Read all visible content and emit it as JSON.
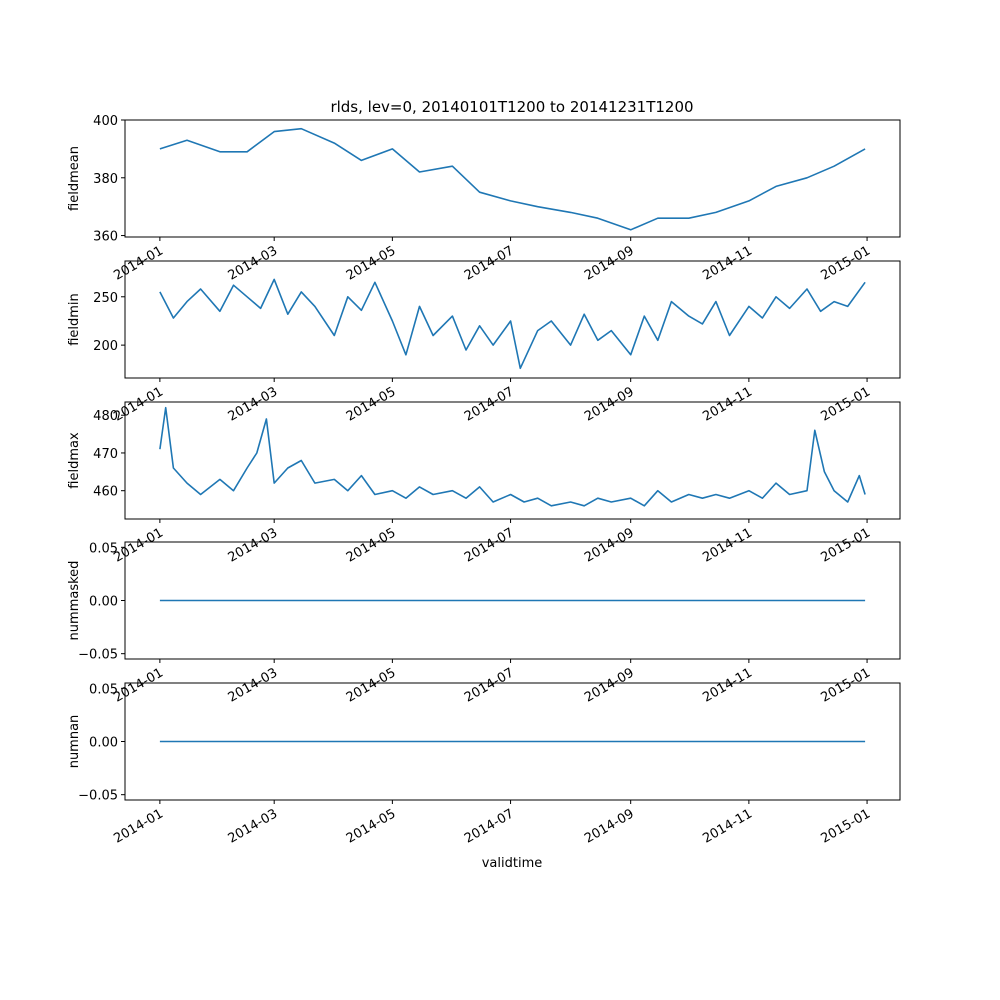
{
  "chart_data": {
    "title": "rlds, lev=0, 20140101T1200 to 20141231T1200",
    "xlabel": "validtime",
    "xtick_labels": [
      "2014-01",
      "2014-03",
      "2014-05",
      "2014-07",
      "2014-09",
      "2014-11",
      "2015-01"
    ],
    "xlim": [
      "2013-12-14",
      "2015-01-18"
    ],
    "colors": {
      "series": "#1f77b4"
    },
    "panels": [
      {
        "type": "line",
        "ylabel": "fieldmean",
        "ylim": [
          359.5,
          400
        ],
        "yticks": [
          360,
          380,
          400
        ],
        "ytick_labels": [
          "360",
          "380",
          "400"
        ],
        "x": [
          "2014-01-01",
          "2014-01-15",
          "2014-02-01",
          "2014-02-15",
          "2014-03-01",
          "2014-03-15",
          "2014-04-01",
          "2014-04-15",
          "2014-05-01",
          "2014-05-15",
          "2014-06-01",
          "2014-06-15",
          "2014-07-01",
          "2014-07-15",
          "2014-08-01",
          "2014-08-15",
          "2014-09-01",
          "2014-09-15",
          "2014-10-01",
          "2014-10-15",
          "2014-11-01",
          "2014-11-15",
          "2014-12-01",
          "2014-12-15",
          "2014-12-31"
        ],
        "y": [
          390,
          393,
          389,
          389,
          396,
          397,
          392,
          386,
          390,
          382,
          384,
          375,
          372,
          370,
          368,
          366,
          362,
          366,
          366,
          368,
          372,
          377,
          380,
          384,
          390
        ]
      },
      {
        "type": "line",
        "ylabel": "fieldmin",
        "ylim": [
          166,
          287
        ],
        "yticks": [
          200,
          250
        ],
        "ytick_labels": [
          "200",
          "250"
        ],
        "x": [
          "2014-01-01",
          "2014-01-08",
          "2014-01-15",
          "2014-01-22",
          "2014-02-01",
          "2014-02-08",
          "2014-02-15",
          "2014-02-22",
          "2014-03-01",
          "2014-03-08",
          "2014-03-15",
          "2014-03-22",
          "2014-04-01",
          "2014-04-08",
          "2014-04-15",
          "2014-04-22",
          "2014-05-01",
          "2014-05-08",
          "2014-05-15",
          "2014-05-22",
          "2014-06-01",
          "2014-06-08",
          "2014-06-15",
          "2014-06-22",
          "2014-07-01",
          "2014-07-06",
          "2014-07-15",
          "2014-07-22",
          "2014-08-01",
          "2014-08-08",
          "2014-08-15",
          "2014-08-22",
          "2014-09-01",
          "2014-09-08",
          "2014-09-15",
          "2014-09-22",
          "2014-10-01",
          "2014-10-08",
          "2014-10-15",
          "2014-10-22",
          "2014-11-01",
          "2014-11-08",
          "2014-11-15",
          "2014-11-22",
          "2014-12-01",
          "2014-12-08",
          "2014-12-15",
          "2014-12-22",
          "2014-12-31"
        ],
        "y": [
          255,
          228,
          245,
          258,
          235,
          262,
          250,
          238,
          268,
          232,
          255,
          240,
          210,
          250,
          236,
          265,
          225,
          190,
          240,
          210,
          230,
          195,
          220,
          200,
          225,
          176,
          215,
          225,
          200,
          232,
          205,
          215,
          190,
          230,
          205,
          245,
          230,
          222,
          245,
          210,
          240,
          228,
          250,
          238,
          258,
          235,
          245,
          240,
          265
        ]
      },
      {
        "type": "line",
        "ylabel": "fieldmax",
        "ylim": [
          452.5,
          483.5
        ],
        "yticks": [
          460,
          470,
          480
        ],
        "ytick_labels": [
          "460",
          "470",
          "480"
        ],
        "x": [
          "2014-01-01",
          "2014-01-04",
          "2014-01-08",
          "2014-01-15",
          "2014-01-22",
          "2014-02-01",
          "2014-02-08",
          "2014-02-15",
          "2014-02-20",
          "2014-02-25",
          "2014-03-01",
          "2014-03-08",
          "2014-03-15",
          "2014-03-22",
          "2014-04-01",
          "2014-04-08",
          "2014-04-15",
          "2014-04-22",
          "2014-05-01",
          "2014-05-08",
          "2014-05-15",
          "2014-05-22",
          "2014-06-01",
          "2014-06-08",
          "2014-06-15",
          "2014-06-22",
          "2014-07-01",
          "2014-07-08",
          "2014-07-15",
          "2014-07-22",
          "2014-08-01",
          "2014-08-08",
          "2014-08-15",
          "2014-08-22",
          "2014-09-01",
          "2014-09-08",
          "2014-09-15",
          "2014-09-22",
          "2014-10-01",
          "2014-10-08",
          "2014-10-15",
          "2014-10-22",
          "2014-11-01",
          "2014-11-08",
          "2014-11-15",
          "2014-11-22",
          "2014-12-01",
          "2014-12-05",
          "2014-12-10",
          "2014-12-15",
          "2014-12-22",
          "2014-12-28",
          "2014-12-31"
        ],
        "y": [
          471,
          482,
          466,
          462,
          459,
          463,
          460,
          466,
          470,
          479,
          462,
          466,
          468,
          462,
          463,
          460,
          464,
          459,
          460,
          458,
          461,
          459,
          460,
          458,
          461,
          457,
          459,
          457,
          458,
          456,
          457,
          456,
          458,
          457,
          458,
          456,
          460,
          457,
          459,
          458,
          459,
          458,
          460,
          458,
          462,
          459,
          460,
          476,
          465,
          460,
          457,
          464,
          459
        ]
      },
      {
        "type": "line",
        "ylabel": "nummasked",
        "ylim": [
          -0.055,
          0.055
        ],
        "yticks": [
          -0.05,
          0.0,
          0.05
        ],
        "ytick_labels": [
          "−0.05",
          "0.00",
          "0.05"
        ],
        "x": [
          "2014-01-01",
          "2014-12-31"
        ],
        "y": [
          0,
          0
        ]
      },
      {
        "type": "line",
        "ylabel": "numnan",
        "ylim": [
          -0.055,
          0.055
        ],
        "yticks": [
          -0.05,
          0.0,
          0.05
        ],
        "ytick_labels": [
          "−0.05",
          "0.00",
          "0.05"
        ],
        "x": [
          "2014-01-01",
          "2014-12-31"
        ],
        "y": [
          0,
          0
        ]
      }
    ]
  }
}
